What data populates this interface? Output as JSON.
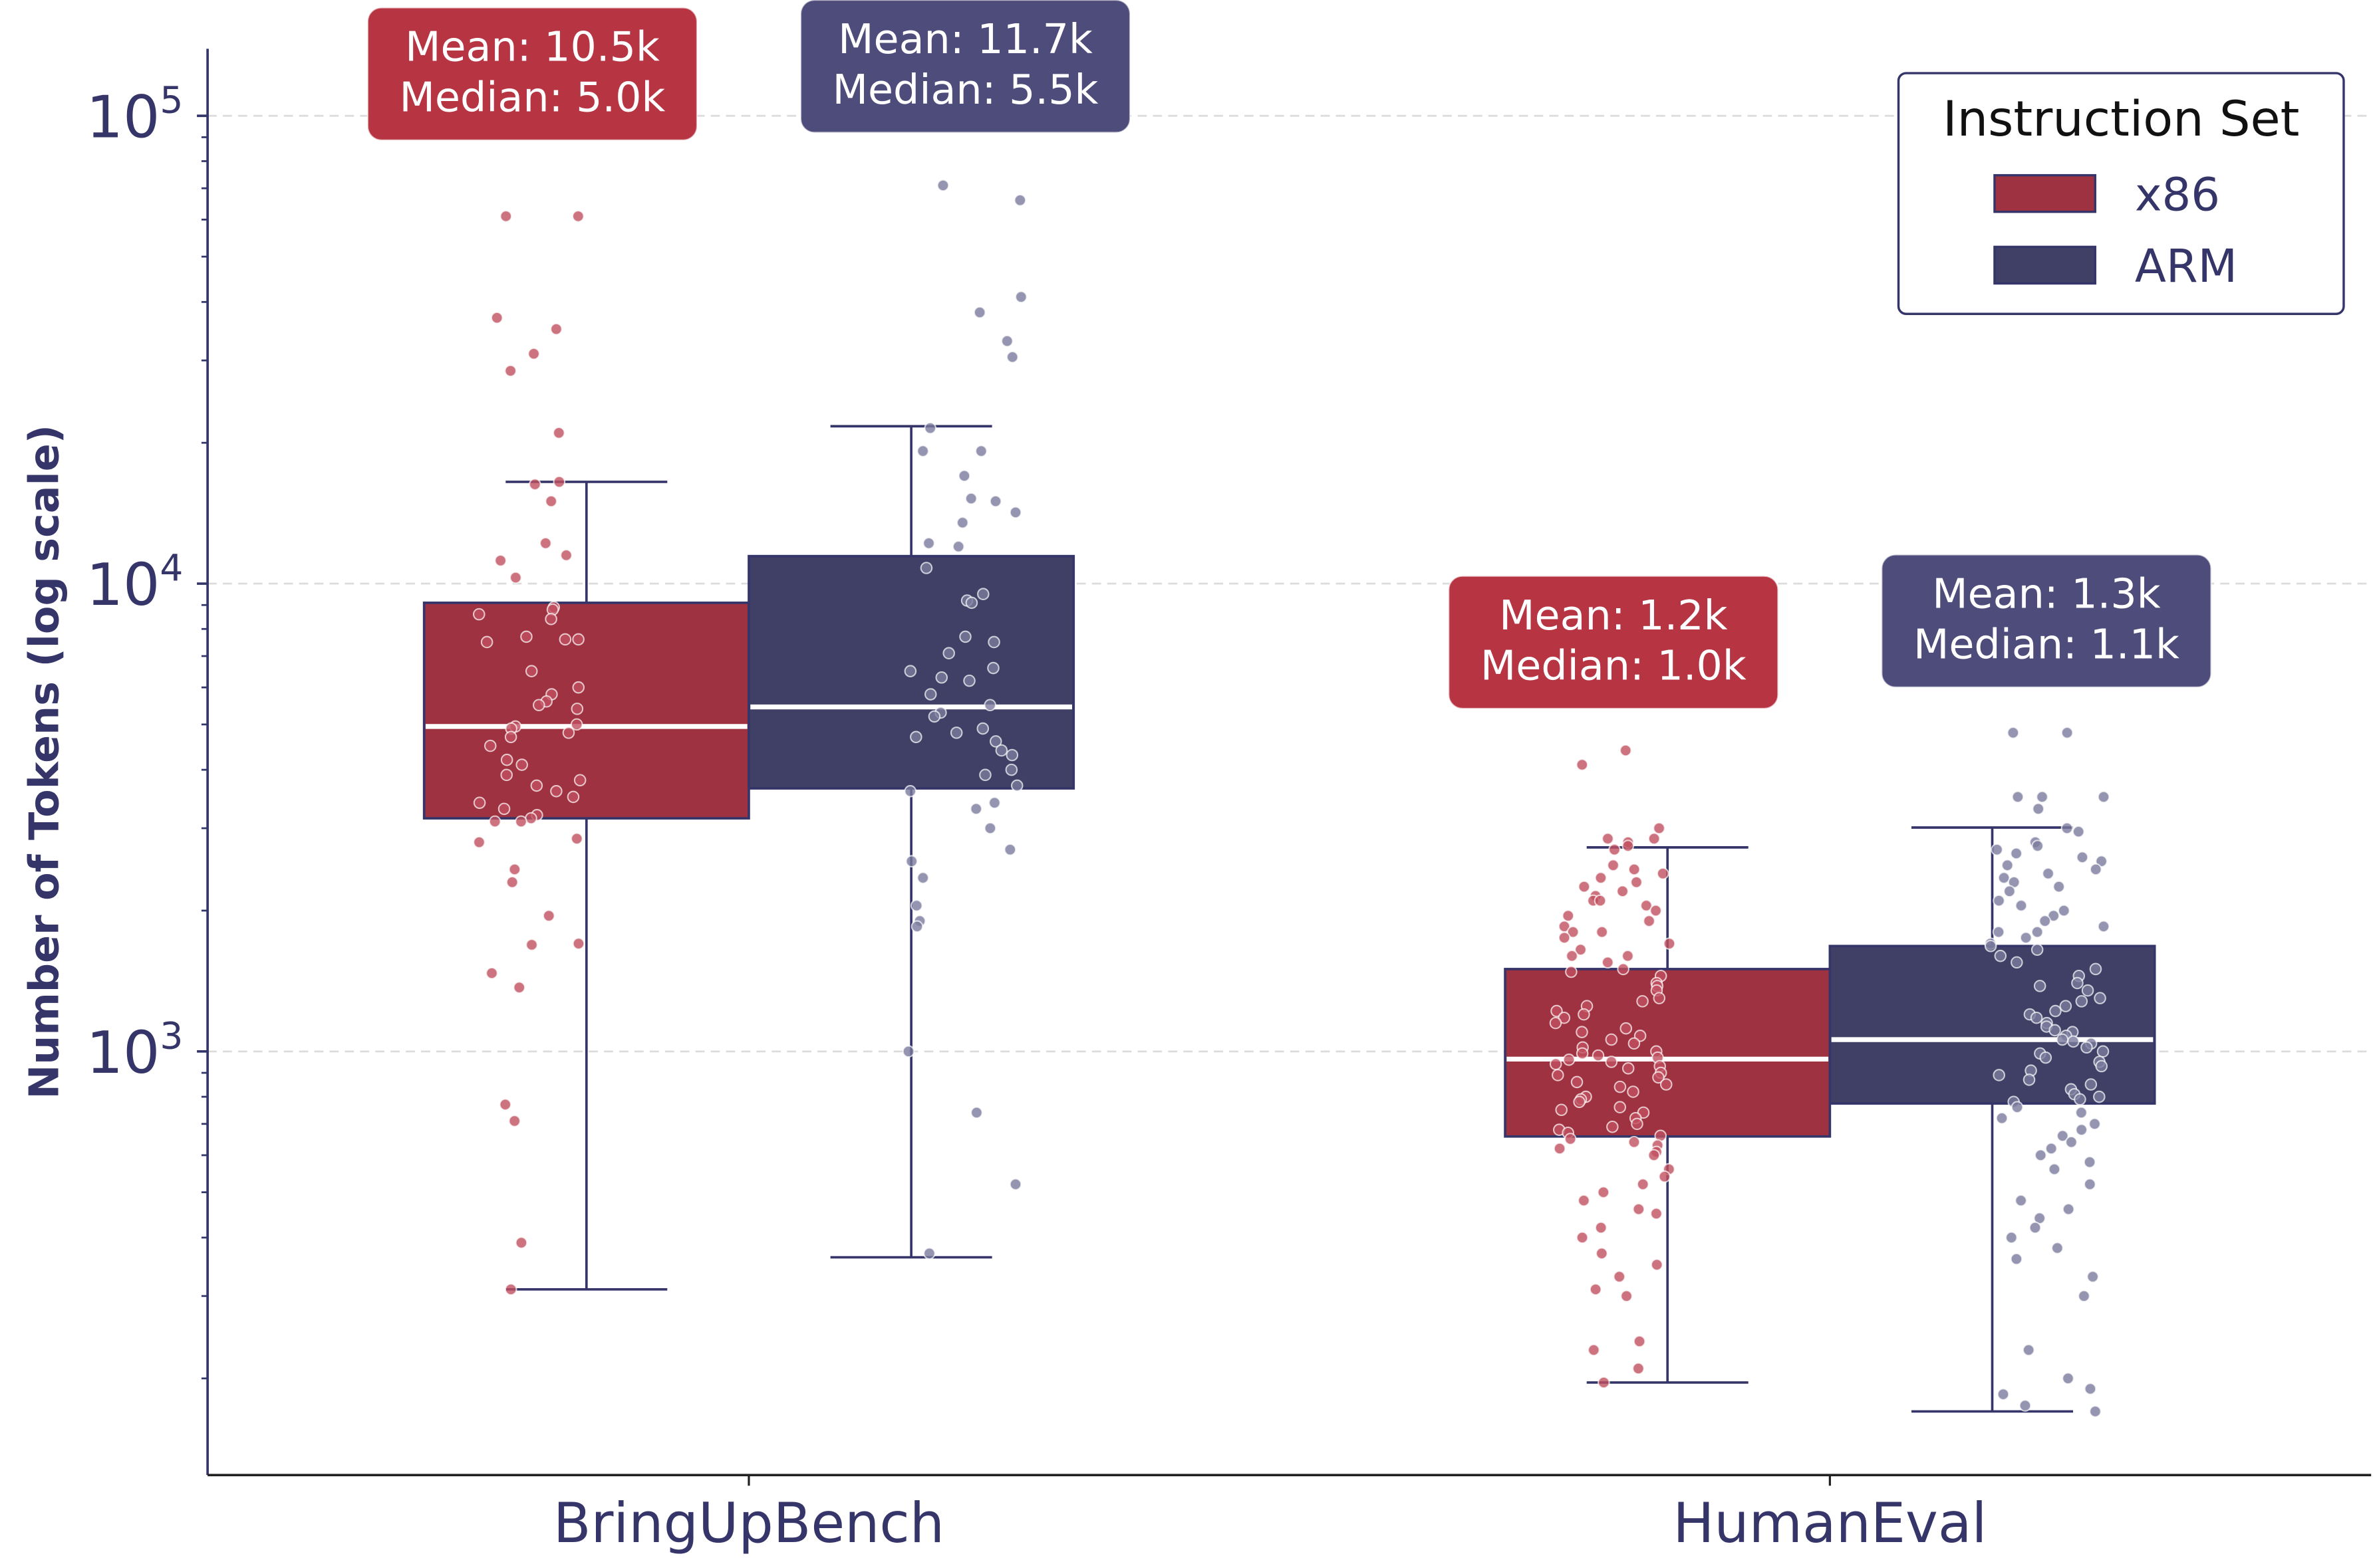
{
  "chart_data": {
    "type": "box",
    "scale": "log",
    "ylabel": "Number of Tokens (log scale)",
    "xlabel": "",
    "ylim": [
      124,
      139000
    ],
    "y_ticks": [
      {
        "base": "10",
        "exp": "3",
        "value": 1000
      },
      {
        "base": "10",
        "exp": "4",
        "value": 10000
      },
      {
        "base": "10",
        "exp": "5",
        "value": 100000
      }
    ],
    "grid": "horizontal dashed at major ticks",
    "categories": [
      "BringUpBench",
      "HumanEval"
    ],
    "legend": {
      "title": "Instruction Set",
      "placement": "top-right"
    },
    "series": [
      {
        "name": "x86",
        "box_color": "#9e3240",
        "point_color": "#c0505f",
        "label_color": "#b73443",
        "boxes": [
          {
            "q1": 3150,
            "median": 4950,
            "q3": 9100,
            "whisker_low": 310,
            "whisker_high": 16500,
            "annotation": {
              "mean": "Mean: 10.5k",
              "median": "Median: 5.0k"
            },
            "points": [
              97000,
              61000,
              61000,
              37000,
              35000,
              31000,
              28500,
              21000,
              16500,
              16300,
              15000,
              12200,
              11500,
              11200,
              10300,
              8900,
              8800,
              8600,
              8400,
              7700,
              7600,
              7600,
              7500,
              6500,
              6000,
              5800,
              5600,
              5500,
              5400,
              5000,
              4950,
              4900,
              4800,
              4700,
              4500,
              4200,
              4100,
              3900,
              3800,
              3700,
              3600,
              3500,
              3400,
              3300,
              3200,
              3150,
              3100,
              3100,
              2850,
              2800,
              2450,
              2300,
              1950,
              1700,
              1690,
              1470,
              1370,
              770,
              710,
              390,
              310
            ]
          },
          {
            "q1": 658,
            "median": 963,
            "q3": 1500,
            "whisker_low": 196,
            "whisker_high": 2730,
            "annotation": {
              "mean": "Mean: 1.2k",
              "median": "Median: 1.0k"
            },
            "points": [
              5800,
              4400,
              4100,
              3000,
              2850,
              2850,
              2800,
              2750,
              2700,
              2500,
              2450,
              2400,
              2350,
              2300,
              2250,
              2200,
              2150,
              2100,
              2100,
              2050,
              2000,
              1950,
              1900,
              1850,
              1800,
              1800,
              1750,
              1700,
              1650,
              1600,
              1600,
              1550,
              1500,
              1480,
              1450,
              1400,
              1380,
              1350,
              1300,
              1280,
              1250,
              1220,
              1200,
              1180,
              1150,
              1120,
              1100,
              1080,
              1060,
              1040,
              1020,
              1000,
              990,
              980,
              970,
              960,
              950,
              940,
              930,
              920,
              900,
              890,
              880,
              860,
              850,
              840,
              820,
              800,
              790,
              780,
              760,
              750,
              740,
              720,
              700,
              690,
              680,
              670,
              660,
              650,
              640,
              630,
              620,
              610,
              600,
              560,
              540,
              520,
              500,
              480,
              460,
              450,
              420,
              400,
              370,
              350,
              330,
              310,
              300,
              240,
              230,
              210,
              196
            ]
          }
        ]
      },
      {
        "name": "ARM",
        "box_color": "#404066",
        "point_color": "#7a7a9e",
        "label_color": "#4e4c7a",
        "boxes": [
          {
            "q1": 3650,
            "median": 5450,
            "q3": 11450,
            "whisker_low": 363,
            "whisker_high": 21700,
            "annotation": {
              "mean": "Mean: 11.7k",
              "median": "Median: 5.5k"
            },
            "points": [
              100000,
              71000,
              66000,
              41000,
              38000,
              33000,
              30500,
              21500,
              19200,
              19200,
              17000,
              15200,
              15000,
              14200,
              13500,
              12200,
              12000,
              10800,
              9500,
              9200,
              9100,
              7700,
              7500,
              7100,
              6600,
              6500,
              6300,
              6200,
              5800,
              5500,
              5300,
              5200,
              4900,
              4800,
              4700,
              4600,
              4400,
              4300,
              4000,
              3900,
              3700,
              3600,
              3400,
              3300,
              3000,
              2700,
              2550,
              2350,
              2050,
              1900,
              1850,
              1000,
              740,
              520,
              370
            ]
          },
          {
            "q1": 774,
            "median": 1060,
            "q3": 1680,
            "whisker_low": 170,
            "whisker_high": 3010,
            "annotation": {
              "mean": "Mean: 1.3k",
              "median": "Median: 1.1k"
            },
            "points": [
              6600,
              4800,
              4800,
              3500,
              3500,
              3500,
              3300,
              3000,
              2950,
              2800,
              2750,
              2700,
              2650,
              2600,
              2550,
              2500,
              2450,
              2400,
              2350,
              2300,
              2250,
              2200,
              2100,
              2050,
              2000,
              1950,
              1900,
              1850,
              1800,
              1800,
              1750,
              1700,
              1680,
              1650,
              1600,
              1550,
              1500,
              1450,
              1400,
              1380,
              1350,
              1300,
              1280,
              1250,
              1220,
              1200,
              1180,
              1150,
              1130,
              1110,
              1100,
              1080,
              1060,
              1050,
              1040,
              1020,
              1000,
              990,
              970,
              950,
              930,
              910,
              890,
              870,
              850,
              830,
              810,
              800,
              790,
              780,
              760,
              740,
              720,
              700,
              680,
              660,
              640,
              620,
              600,
              580,
              560,
              520,
              480,
              460,
              440,
              420,
              400,
              380,
              360,
              330,
              300,
              230,
              200,
              190,
              185,
              175,
              170
            ]
          }
        ]
      }
    ]
  }
}
